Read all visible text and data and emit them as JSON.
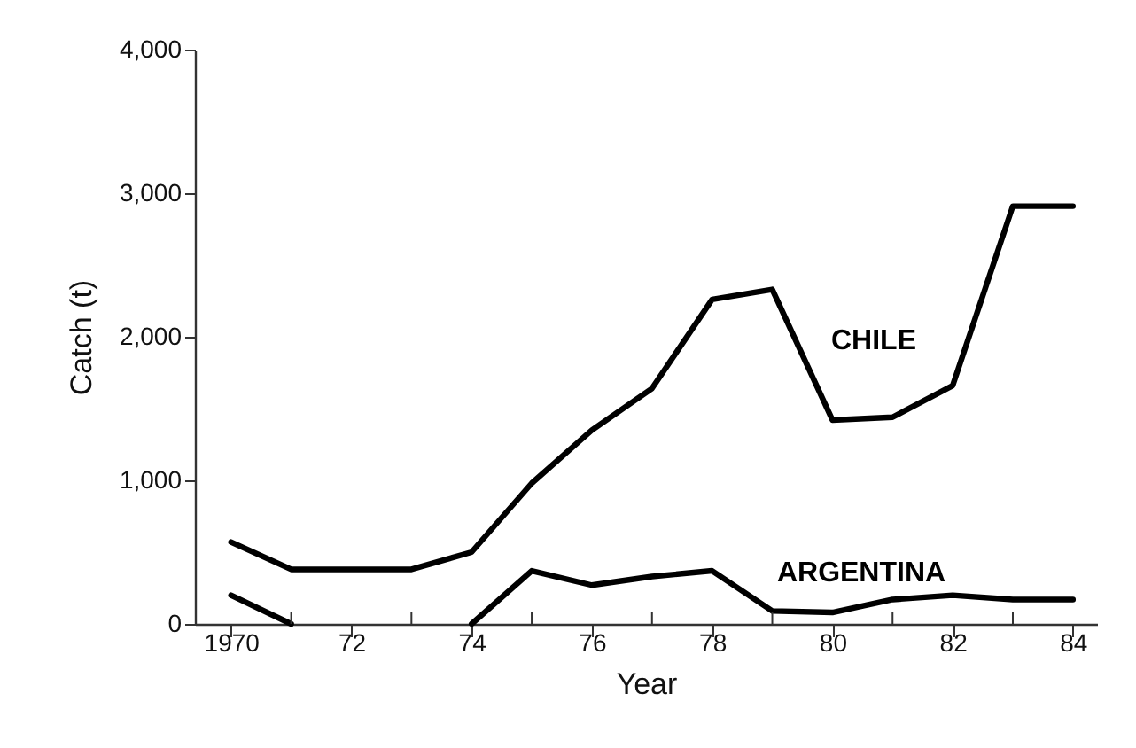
{
  "chart_data": {
    "type": "line",
    "xlabel": "Year",
    "ylabel": "Catch (t)",
    "x": [
      1970,
      1971,
      1972,
      1973,
      1974,
      1975,
      1976,
      1977,
      1978,
      1979,
      1980,
      1981,
      1982,
      1983,
      1984
    ],
    "series": [
      {
        "name": "CHILE",
        "color": "#000000",
        "values": [
          570,
          380,
          380,
          380,
          500,
          980,
          1350,
          1640,
          2260,
          2330,
          1420,
          1440,
          1660,
          2910,
          2910
        ]
      },
      {
        "name": "ARGENTINA",
        "color": "#000000",
        "values": [
          200,
          0,
          null,
          null,
          0,
          370,
          270,
          330,
          370,
          90,
          80,
          170,
          200,
          170,
          170
        ]
      }
    ],
    "xlim": [
      1969.4,
      1984.4
    ],
    "xticks": [
      {
        "value": 1970,
        "label": "1970"
      },
      {
        "value": 1971,
        "label": null
      },
      {
        "value": 1972,
        "label": "72"
      },
      {
        "value": 1973,
        "label": null
      },
      {
        "value": 1974,
        "label": "74"
      },
      {
        "value": 1975,
        "label": null
      },
      {
        "value": 1976,
        "label": "76"
      },
      {
        "value": 1977,
        "label": null
      },
      {
        "value": 1978,
        "label": "78"
      },
      {
        "value": 1979,
        "label": null
      },
      {
        "value": 1980,
        "label": "80"
      },
      {
        "value": 1981,
        "label": null
      },
      {
        "value": 1982,
        "label": "82"
      },
      {
        "value": 1983,
        "label": null
      },
      {
        "value": 1984,
        "label": "84"
      }
    ],
    "ylim": [
      0,
      4000
    ],
    "yticks": [
      0,
      {
        "value": 1000,
        "label": "1,000"
      },
      {
        "value": 2000,
        "label": "2,000"
      },
      {
        "value": 3000,
        "label": "3,000"
      },
      {
        "value": 4000,
        "label": "4,000"
      }
    ],
    "grid": false,
    "marker": "none",
    "line_style": "solid"
  }
}
